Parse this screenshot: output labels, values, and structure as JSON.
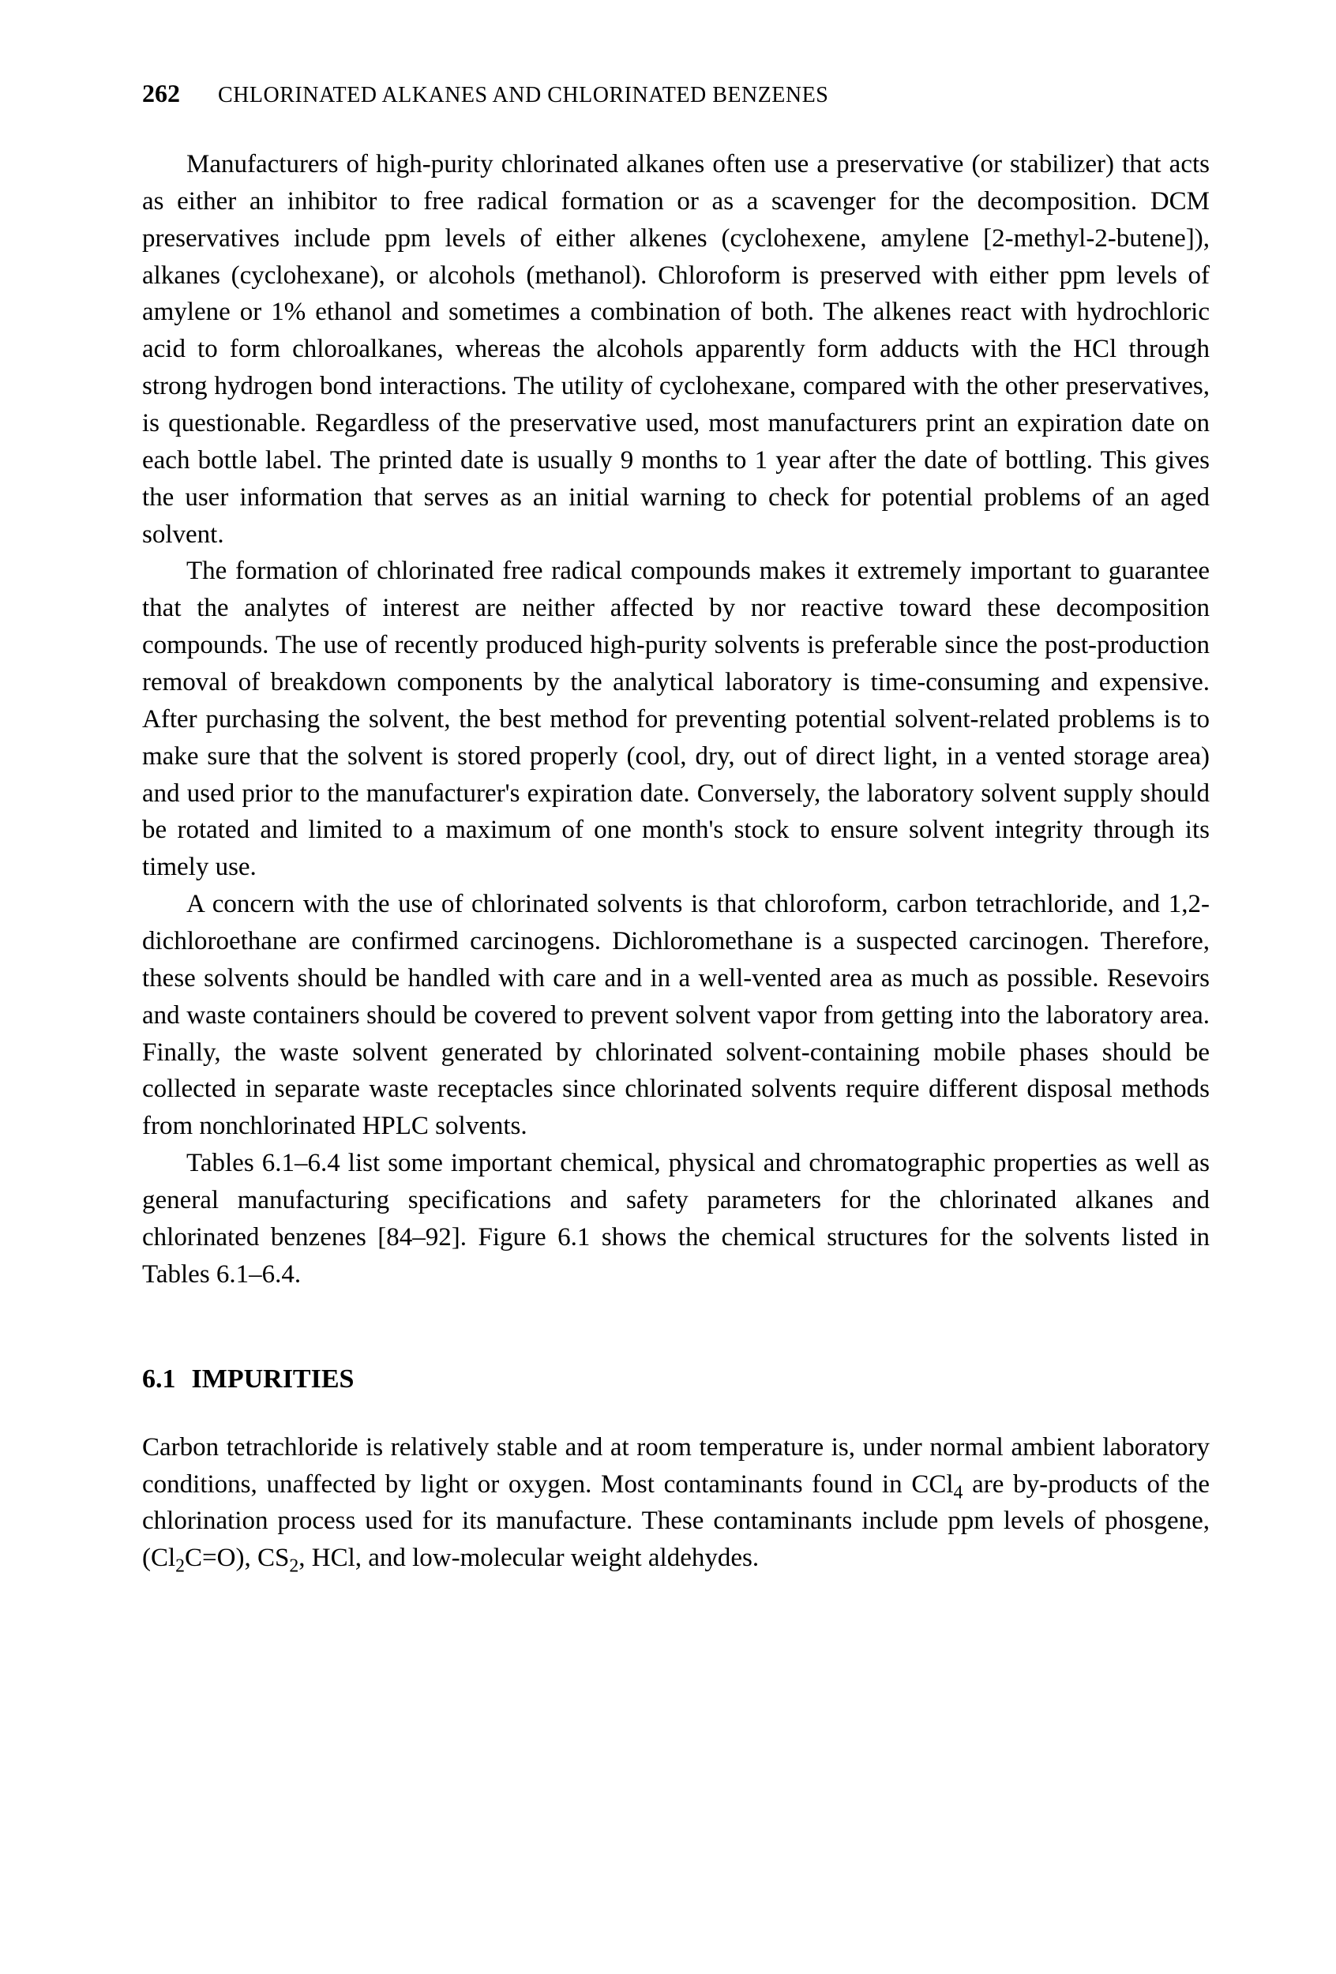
{
  "header": {
    "page_number": "262",
    "running_title": "CHLORINATED ALKANES AND CHLORINATED BENZENES"
  },
  "paragraphs": {
    "p1": "Manufacturers of high-purity chlorinated alkanes often use a preservative (or stabilizer) that acts as either an inhibitor to free radical formation or as a scavenger for the decomposition. DCM preservatives include ppm levels of either alkenes (cyclohexene, amylene [2-methyl-2-butene]), alkanes (cyclohexane), or alcohols (methanol). Chloroform is preserved with either ppm levels of amylene or 1% ethanol and sometimes a combination of both. The alkenes react with hydrochloric acid to form chloroalkanes, whereas the alcohols apparently form adducts with the HCl through strong hydrogen bond interactions. The utility of cyclohexane, compared with the other preservatives, is questionable. Regardless of the preservative used, most manufacturers print an expiration date on each bottle label. The printed date is usually 9 months to 1 year after the date of bottling. This gives the user information that serves as an initial warning to check for potential problems of an aged solvent.",
    "p2": "The formation of chlorinated free radical compounds makes it extremely important to guarantee that the analytes of interest are neither affected by nor reactive toward these decomposition compounds. The use of recently produced high-purity solvents is preferable since the post-production removal of breakdown components by the analytical laboratory is time-consuming and expensive. After purchasing the solvent, the best method for preventing potential solvent-related problems is to make sure that the solvent is stored properly (cool, dry, out of direct light, in a vented storage area) and used prior to the manufacturer's expiration date. Conversely, the laboratory solvent supply should be rotated and limited to a maximum of one month's stock to ensure solvent integrity through its timely use.",
    "p3": "A concern with the use of chlorinated solvents is that chloroform, carbon tetrachloride, and 1,2-dichloroethane are confirmed carcinogens. Dichloromethane is a suspected carcinogen. Therefore, these solvents should be handled with care and in a well-vented area as much as possible. Resevoirs and waste containers should be covered to prevent solvent vapor from getting into the laboratory area. Finally, the waste solvent generated by chlorinated solvent-containing mobile phases should be collected in separate waste receptacles since chlorinated solvents require different disposal methods from nonchlorinated HPLC solvents.",
    "p4": "Tables 6.1–6.4 list some important chemical, physical and chromatographic properties as well as general manufacturing specifications and safety parameters for the chlorinated alkanes and chlorinated benzenes [84–92]. Figure 6.1 shows the chemical structures for the solvents listed in Tables 6.1–6.4."
  },
  "section": {
    "number": "6.1",
    "title": "IMPURITIES"
  },
  "section_paragraph": {
    "prefix": "Carbon tetrachloride is relatively stable and at room temperature is, under normal ambient laboratory conditions, unaffected by light or oxygen. Most contaminants found in CCl",
    "sub1": "4",
    "mid1": " are by-products of the chlorination process used for its manufacture. These contaminants include ppm levels of phosgene, (Cl",
    "sub2": "2",
    "mid2": "C=O), CS",
    "sub3": "2",
    "suffix": ", HCl, and low-molecular weight aldehydes."
  }
}
